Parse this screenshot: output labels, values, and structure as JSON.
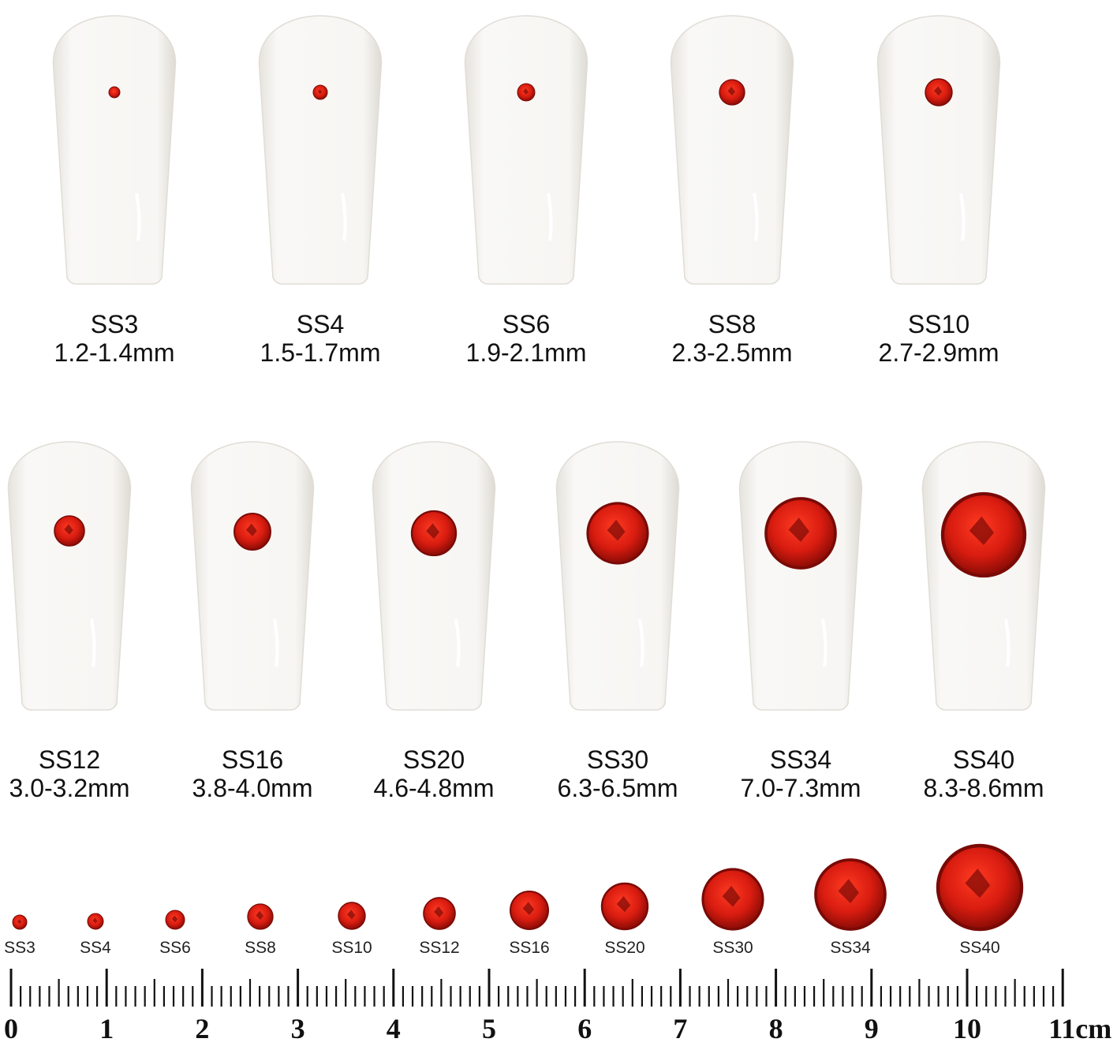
{
  "row1": [
    {
      "name": "SS3",
      "size": "1.2-1.4mm"
    },
    {
      "name": "SS4",
      "size": "1.5-1.7mm"
    },
    {
      "name": "SS6",
      "size": "1.9-2.1mm"
    },
    {
      "name": "SS8",
      "size": "2.3-2.5mm"
    },
    {
      "name": "SS10",
      "size": "2.7-2.9mm"
    }
  ],
  "row2": [
    {
      "name": "SS12",
      "size": "3.0-3.2mm"
    },
    {
      "name": "SS16",
      "size": "3.8-4.0mm"
    },
    {
      "name": "SS20",
      "size": "4.6-4.8mm"
    },
    {
      "name": "SS30",
      "size": "6.3-6.5mm"
    },
    {
      "name": "SS34",
      "size": "7.0-7.3mm"
    },
    {
      "name": "SS40",
      "size": "8.3-8.6mm"
    }
  ],
  "scale_labels": [
    "SS3",
    "SS4",
    "SS6",
    "SS8",
    "SS10",
    "SS12",
    "SS16",
    "SS20",
    "SS30",
    "SS34",
    "SS40"
  ],
  "ruler": {
    "numbers": [
      "0",
      "1",
      "2",
      "3",
      "4",
      "5",
      "6",
      "7",
      "8",
      "9",
      "10",
      "11cm"
    ],
    "unit": "cm"
  },
  "colors": {
    "gem": "#d81c10",
    "gem_dark": "#7a0a06",
    "nail": "#f7f6f3",
    "nail_edge": "#dcd9d2"
  }
}
